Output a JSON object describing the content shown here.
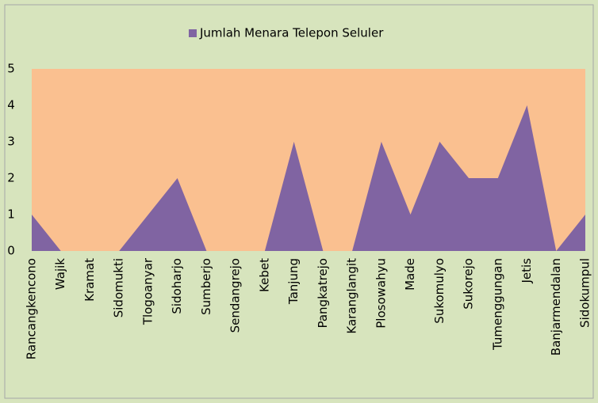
{
  "chart_data": {
    "type": "area",
    "categories": [
      "Rancangkencono",
      "Wajik",
      "Kramat",
      "Sidomukti",
      "Tlogoanyar",
      "Sidoharjo",
      "Sumberjo",
      "Sendangrejo",
      "Kebet",
      "Tanjung",
      "Pangkatrejo",
      "Karanglangit",
      "Plosowahyu",
      "Made",
      "Sukomulyo",
      "Sukorejo",
      "Tumenggungan",
      "Jetis",
      "Banjarmendalan",
      "Sidokumpul"
    ],
    "series": [
      {
        "name": "Jumlah Menara Telepon Seluler",
        "color": "#8064a2",
        "values": [
          1,
          0,
          0,
          0,
          1,
          2,
          0,
          0,
          0,
          3,
          0,
          0,
          3,
          1,
          3,
          2,
          2,
          4,
          0,
          1
        ]
      }
    ],
    "ylim": [
      0,
      5
    ],
    "yticks": [
      0,
      1,
      2,
      3,
      4,
      5
    ],
    "grid": false,
    "legend": "top"
  }
}
